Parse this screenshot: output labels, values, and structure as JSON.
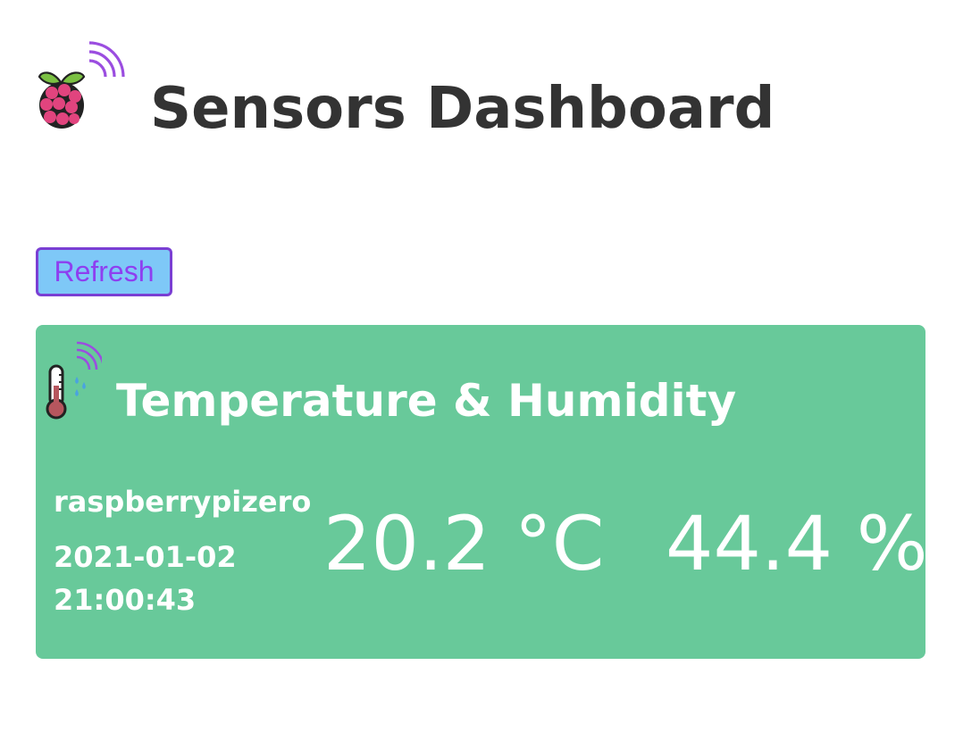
{
  "header": {
    "title": "Sensors Dashboard",
    "logo_icon": "raspberry-pi-wireless-icon"
  },
  "toolbar": {
    "refresh_label": "Refresh"
  },
  "sensor_card": {
    "title": "Temperature & Humidity",
    "icon": "thermometer-humidity-wireless-icon",
    "device_name": "raspberrypizero",
    "date": "2021-01-02",
    "time": "21:00:43",
    "temperature": "20.2 °C",
    "humidity": "44.4 %"
  },
  "colors": {
    "card_background": "#68c99a",
    "button_background": "#7ec8f7",
    "button_border": "#7a3fd3",
    "button_text": "#8e3ff0",
    "title_text": "#333333",
    "card_text": "#ffffff"
  }
}
